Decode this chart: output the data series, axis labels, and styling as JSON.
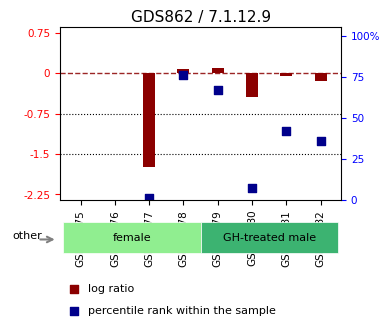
{
  "title": "GDS862 / 7.1.12.9",
  "samples": [
    "GSM19175",
    "GSM19176",
    "GSM19177",
    "GSM19178",
    "GSM19179",
    "GSM19180",
    "GSM19181",
    "GSM19182"
  ],
  "log_ratio": [
    0.0,
    0.0,
    -1.75,
    0.08,
    0.1,
    -0.45,
    -0.05,
    -0.15
  ],
  "percentile_rank": [
    null,
    null,
    1.0,
    76.0,
    67.0,
    7.0,
    42.0,
    36.0
  ],
  "groups": [
    {
      "label": "female",
      "start": 0,
      "end": 3,
      "color": "#90ee90"
    },
    {
      "label": "GH-treated male",
      "start": 4,
      "end": 7,
      "color": "#3cb371"
    }
  ],
  "ylim_left": [
    -2.35,
    0.85
  ],
  "ylim_right": [
    0,
    105
  ],
  "yticks_left": [
    0.75,
    0,
    -0.75,
    -1.5,
    -2.25
  ],
  "yticks_right": [
    100,
    75,
    50,
    25,
    0
  ],
  "ytick_right_labels": [
    "100%",
    "75",
    "50",
    "25",
    "0"
  ],
  "hlines": [
    -0.75,
    -1.5
  ],
  "dashed_hline": 0.0,
  "bar_color": "#8B0000",
  "dot_color": "#00008B",
  "bar_width": 0.35,
  "dot_size": 40,
  "legend_items": [
    "log ratio",
    "percentile rank within the sample"
  ],
  "other_label": "other",
  "title_fontsize": 11,
  "tick_fontsize": 7.5,
  "label_fontsize": 8
}
